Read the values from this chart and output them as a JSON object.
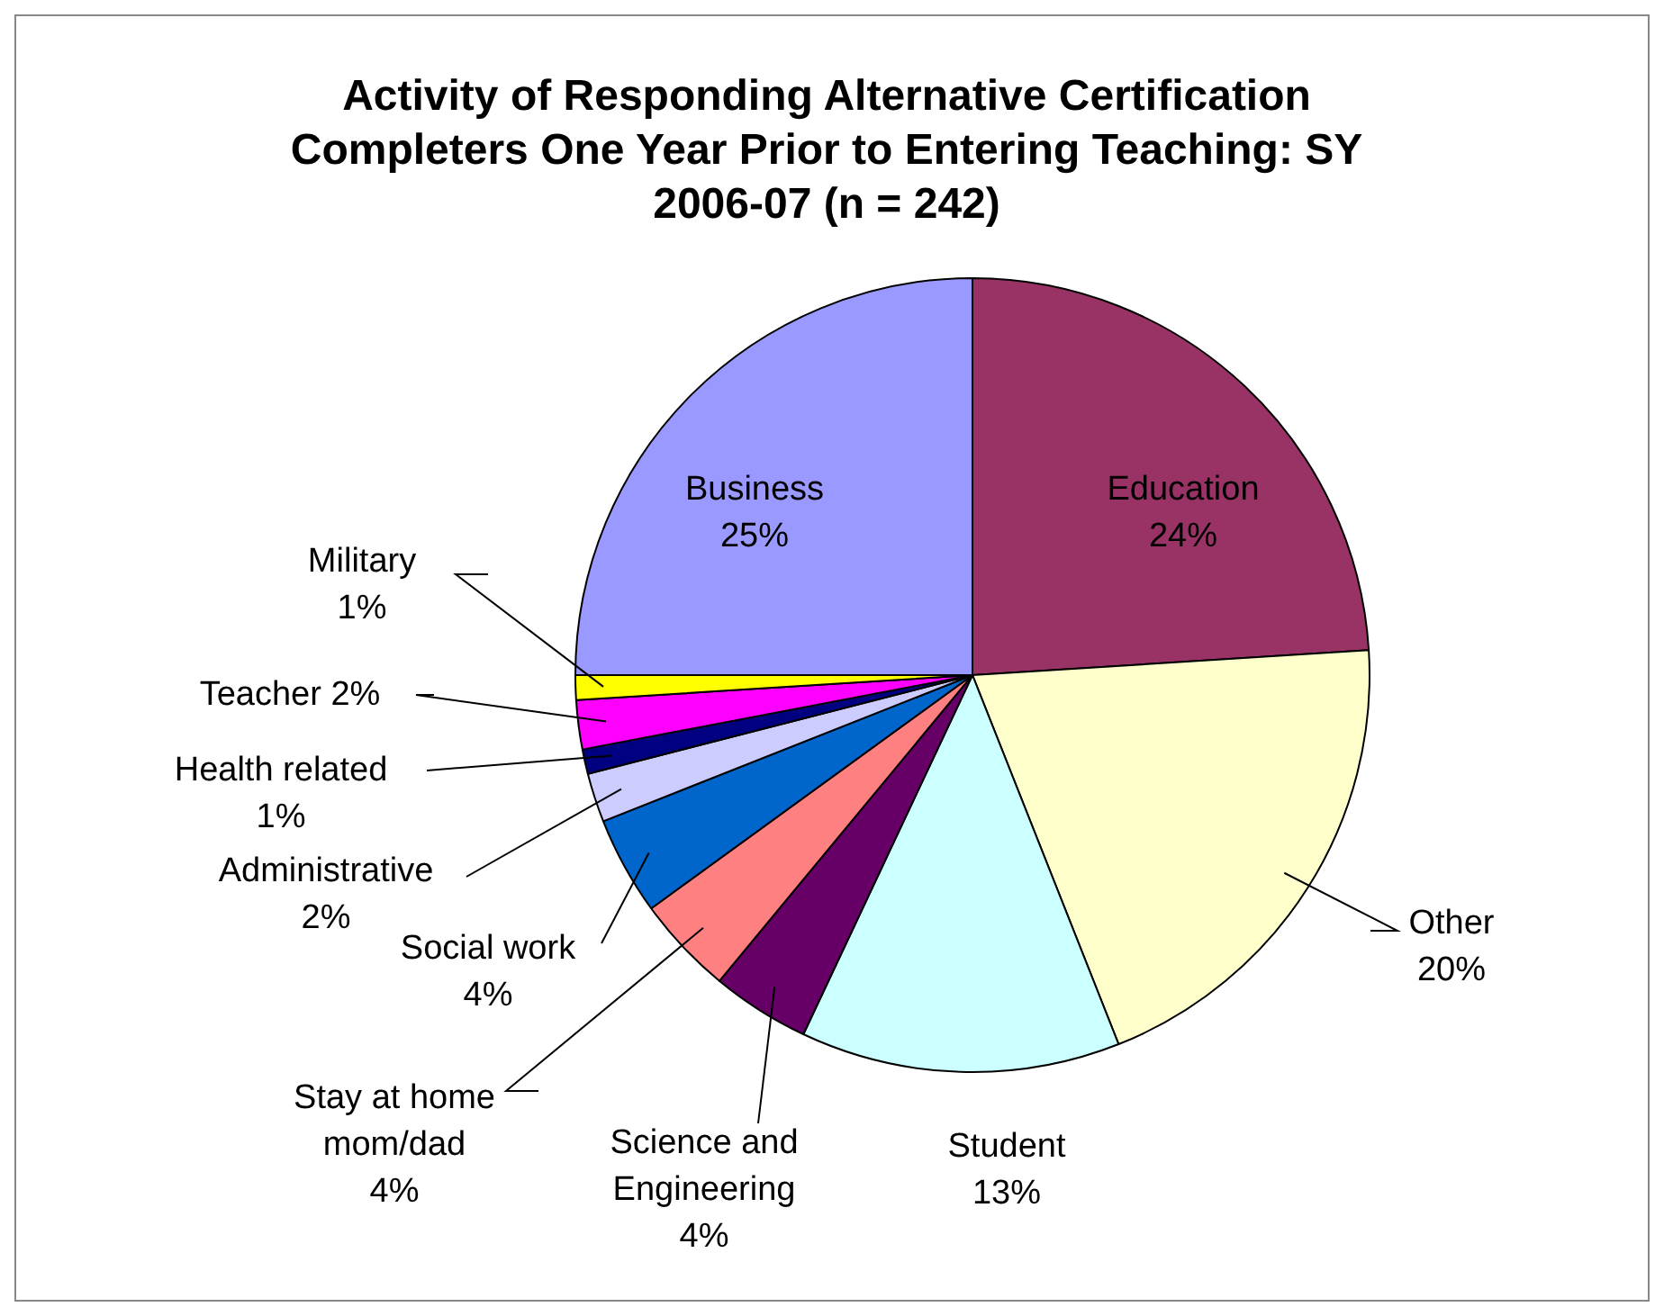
{
  "chart_data": {
    "type": "pie",
    "title": "Activity of Responding Alternative Certification Completers One Year Prior to Entering Teaching: SY 2006-07 (n = 242)",
    "categories": [
      "Education",
      "Other",
      "Student",
      "Science and Engineering",
      "Stay at home mom/dad",
      "Social work",
      "Administrative",
      "Health related",
      "Teacher",
      "Military",
      "Business"
    ],
    "values": [
      24,
      20,
      13,
      4,
      4,
      4,
      2,
      1,
      2,
      1,
      25
    ],
    "colors": [
      "#993366",
      "#ffffcc",
      "#ccffff",
      "#660066",
      "#ff8080",
      "#0066cc",
      "#ccccff",
      "#000080",
      "#ff00ff",
      "#ffff00",
      "#9999ff"
    ],
    "value_labels": [
      "24%",
      "20%",
      "13%",
      "4%",
      "4%",
      "4%",
      "2%",
      "1%",
      "2%",
      "1%",
      "25%"
    ],
    "legend": false
  }
}
